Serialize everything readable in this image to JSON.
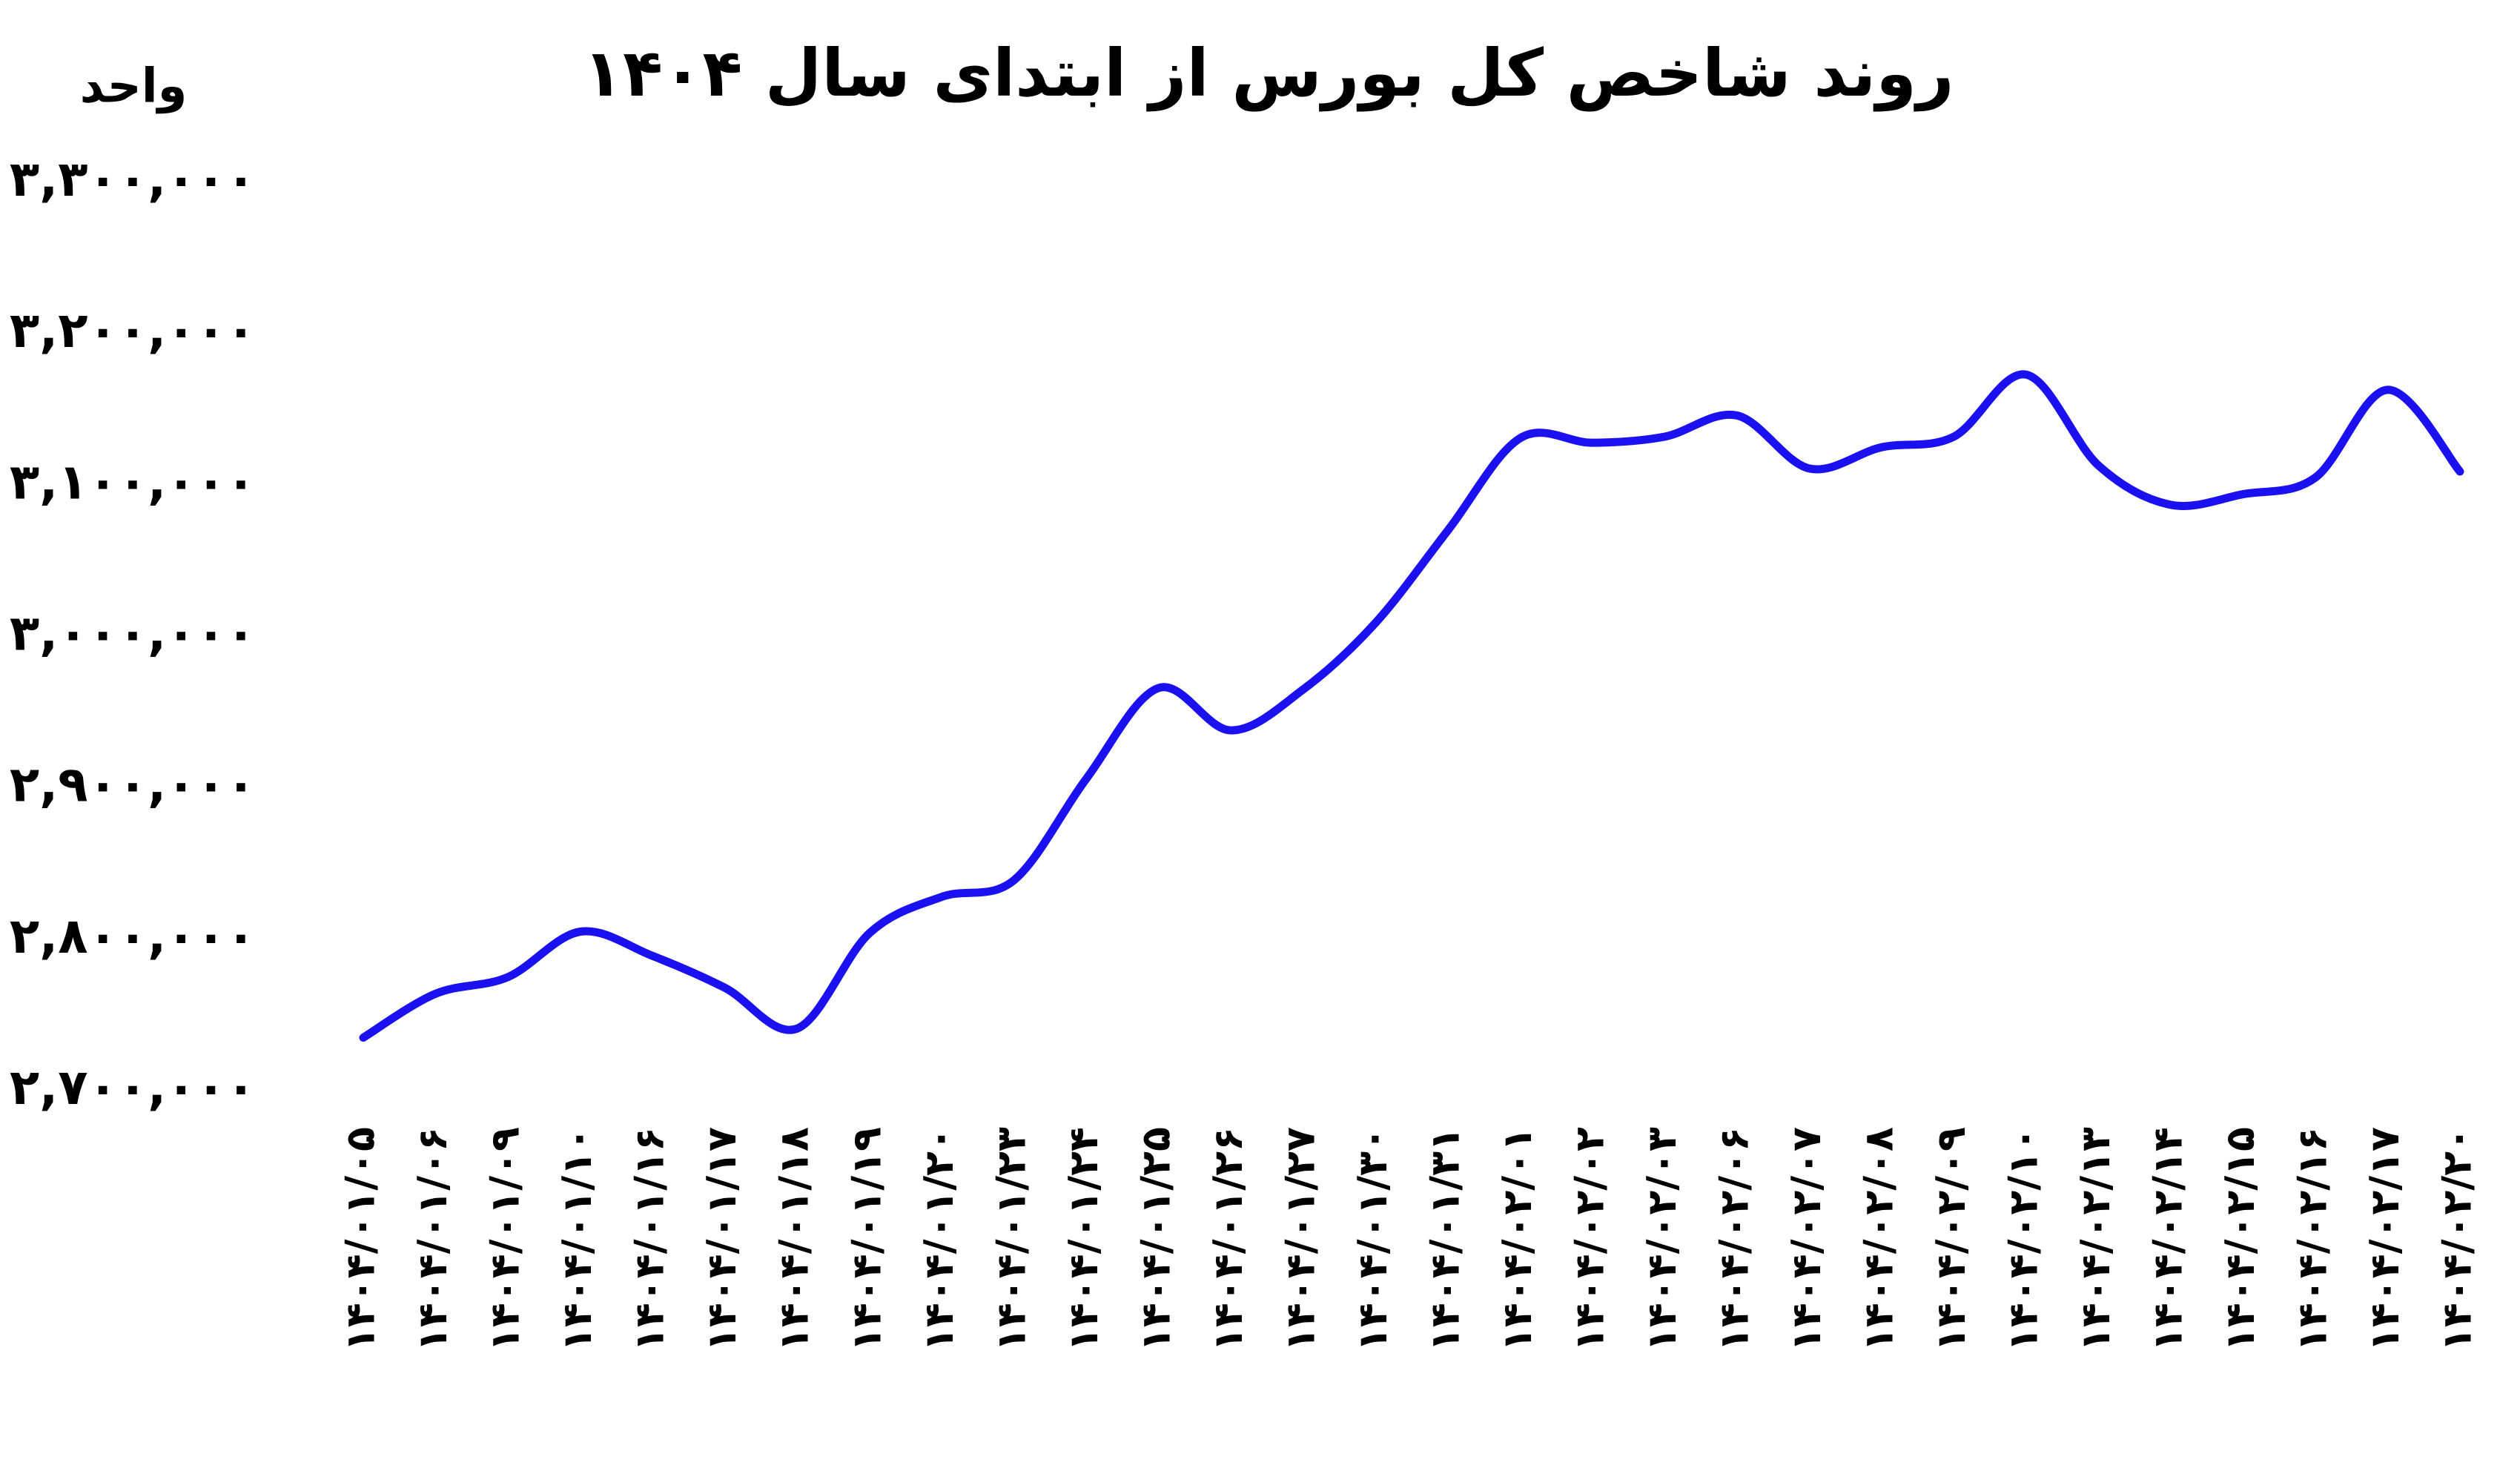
{
  "chart_data": {
    "type": "line",
    "title": "روند شاخص کل بورس از ابتدای سال ۱۴۰۴",
    "y_label": "واحد",
    "categories": [
      "۱۴۰۴/۰۱/۰۵",
      "۱۴۰۴/۰۱/۰۶",
      "۱۴۰۴/۰۱/۰۹",
      "۱۴۰۴/۰۱/۱۰",
      "۱۴۰۴/۰۱/۱۶",
      "۱۴۰۴/۰۱/۱۷",
      "۱۴۰۴/۰۱/۱۸",
      "۱۴۰۴/۰۱/۱۹",
      "۱۴۰۴/۰۱/۲۰",
      "۱۴۰۴/۰۱/۲۳",
      "۱۴۰۴/۰۱/۲۴",
      "۱۴۰۴/۰۱/۲۵",
      "۱۴۰۴/۰۱/۲۶",
      "۱۴۰۴/۰۱/۲۷",
      "۱۴۰۴/۰۱/۳۰",
      "۱۴۰۴/۰۱/۳۱",
      "۱۴۰۴/۰۲/۰۱",
      "۱۴۰۴/۰۲/۰۲",
      "۱۴۰۴/۰۲/۰۳",
      "۱۴۰۴/۰۲/۰۶",
      "۱۴۰۴/۰۲/۰۷",
      "۱۴۰۴/۰۲/۰۸",
      "۱۴۰۴/۰۲/۰۹",
      "۱۴۰۴/۰۲/۱۰",
      "۱۴۰۴/۰۲/۱۳",
      "۱۴۰۴/۰۲/۱۴",
      "۱۴۰۴/۰۲/۱۵",
      "۱۴۰۴/۰۲/۱۶",
      "۱۴۰۴/۰۲/۱۷",
      "۱۴۰۴/۰۲/۲۰"
    ],
    "values": [
      2735000,
      2764000,
      2775000,
      2805000,
      2789000,
      2768000,
      2741000,
      2804000,
      2828000,
      2839000,
      2906000,
      2966000,
      2938000,
      2965000,
      3009000,
      3070000,
      3131000,
      3128000,
      3132000,
      3146000,
      3111000,
      3125000,
      3132000,
      3173000,
      3113000,
      3087000,
      3094000,
      3105000,
      3163000,
      3109000
    ],
    "color": "#1a10f0",
    "ylim": [
      2700000,
      3300000
    ],
    "yticks": [
      {
        "value": 2700000,
        "label": "۲,۷۰۰,۰۰۰"
      },
      {
        "value": 2800000,
        "label": "۲,۸۰۰,۰۰۰"
      },
      {
        "value": 2900000,
        "label": "۲,۹۰۰,۰۰۰"
      },
      {
        "value": 3000000,
        "label": "۳,۰۰۰,۰۰۰"
      },
      {
        "value": 3100000,
        "label": "۳,۱۰۰,۰۰۰"
      },
      {
        "value": 3200000,
        "label": "۳,۲۰۰,۰۰۰"
      },
      {
        "value": 3300000,
        "label": "۳,۳۰۰,۰۰۰"
      }
    ],
    "grid": false
  }
}
